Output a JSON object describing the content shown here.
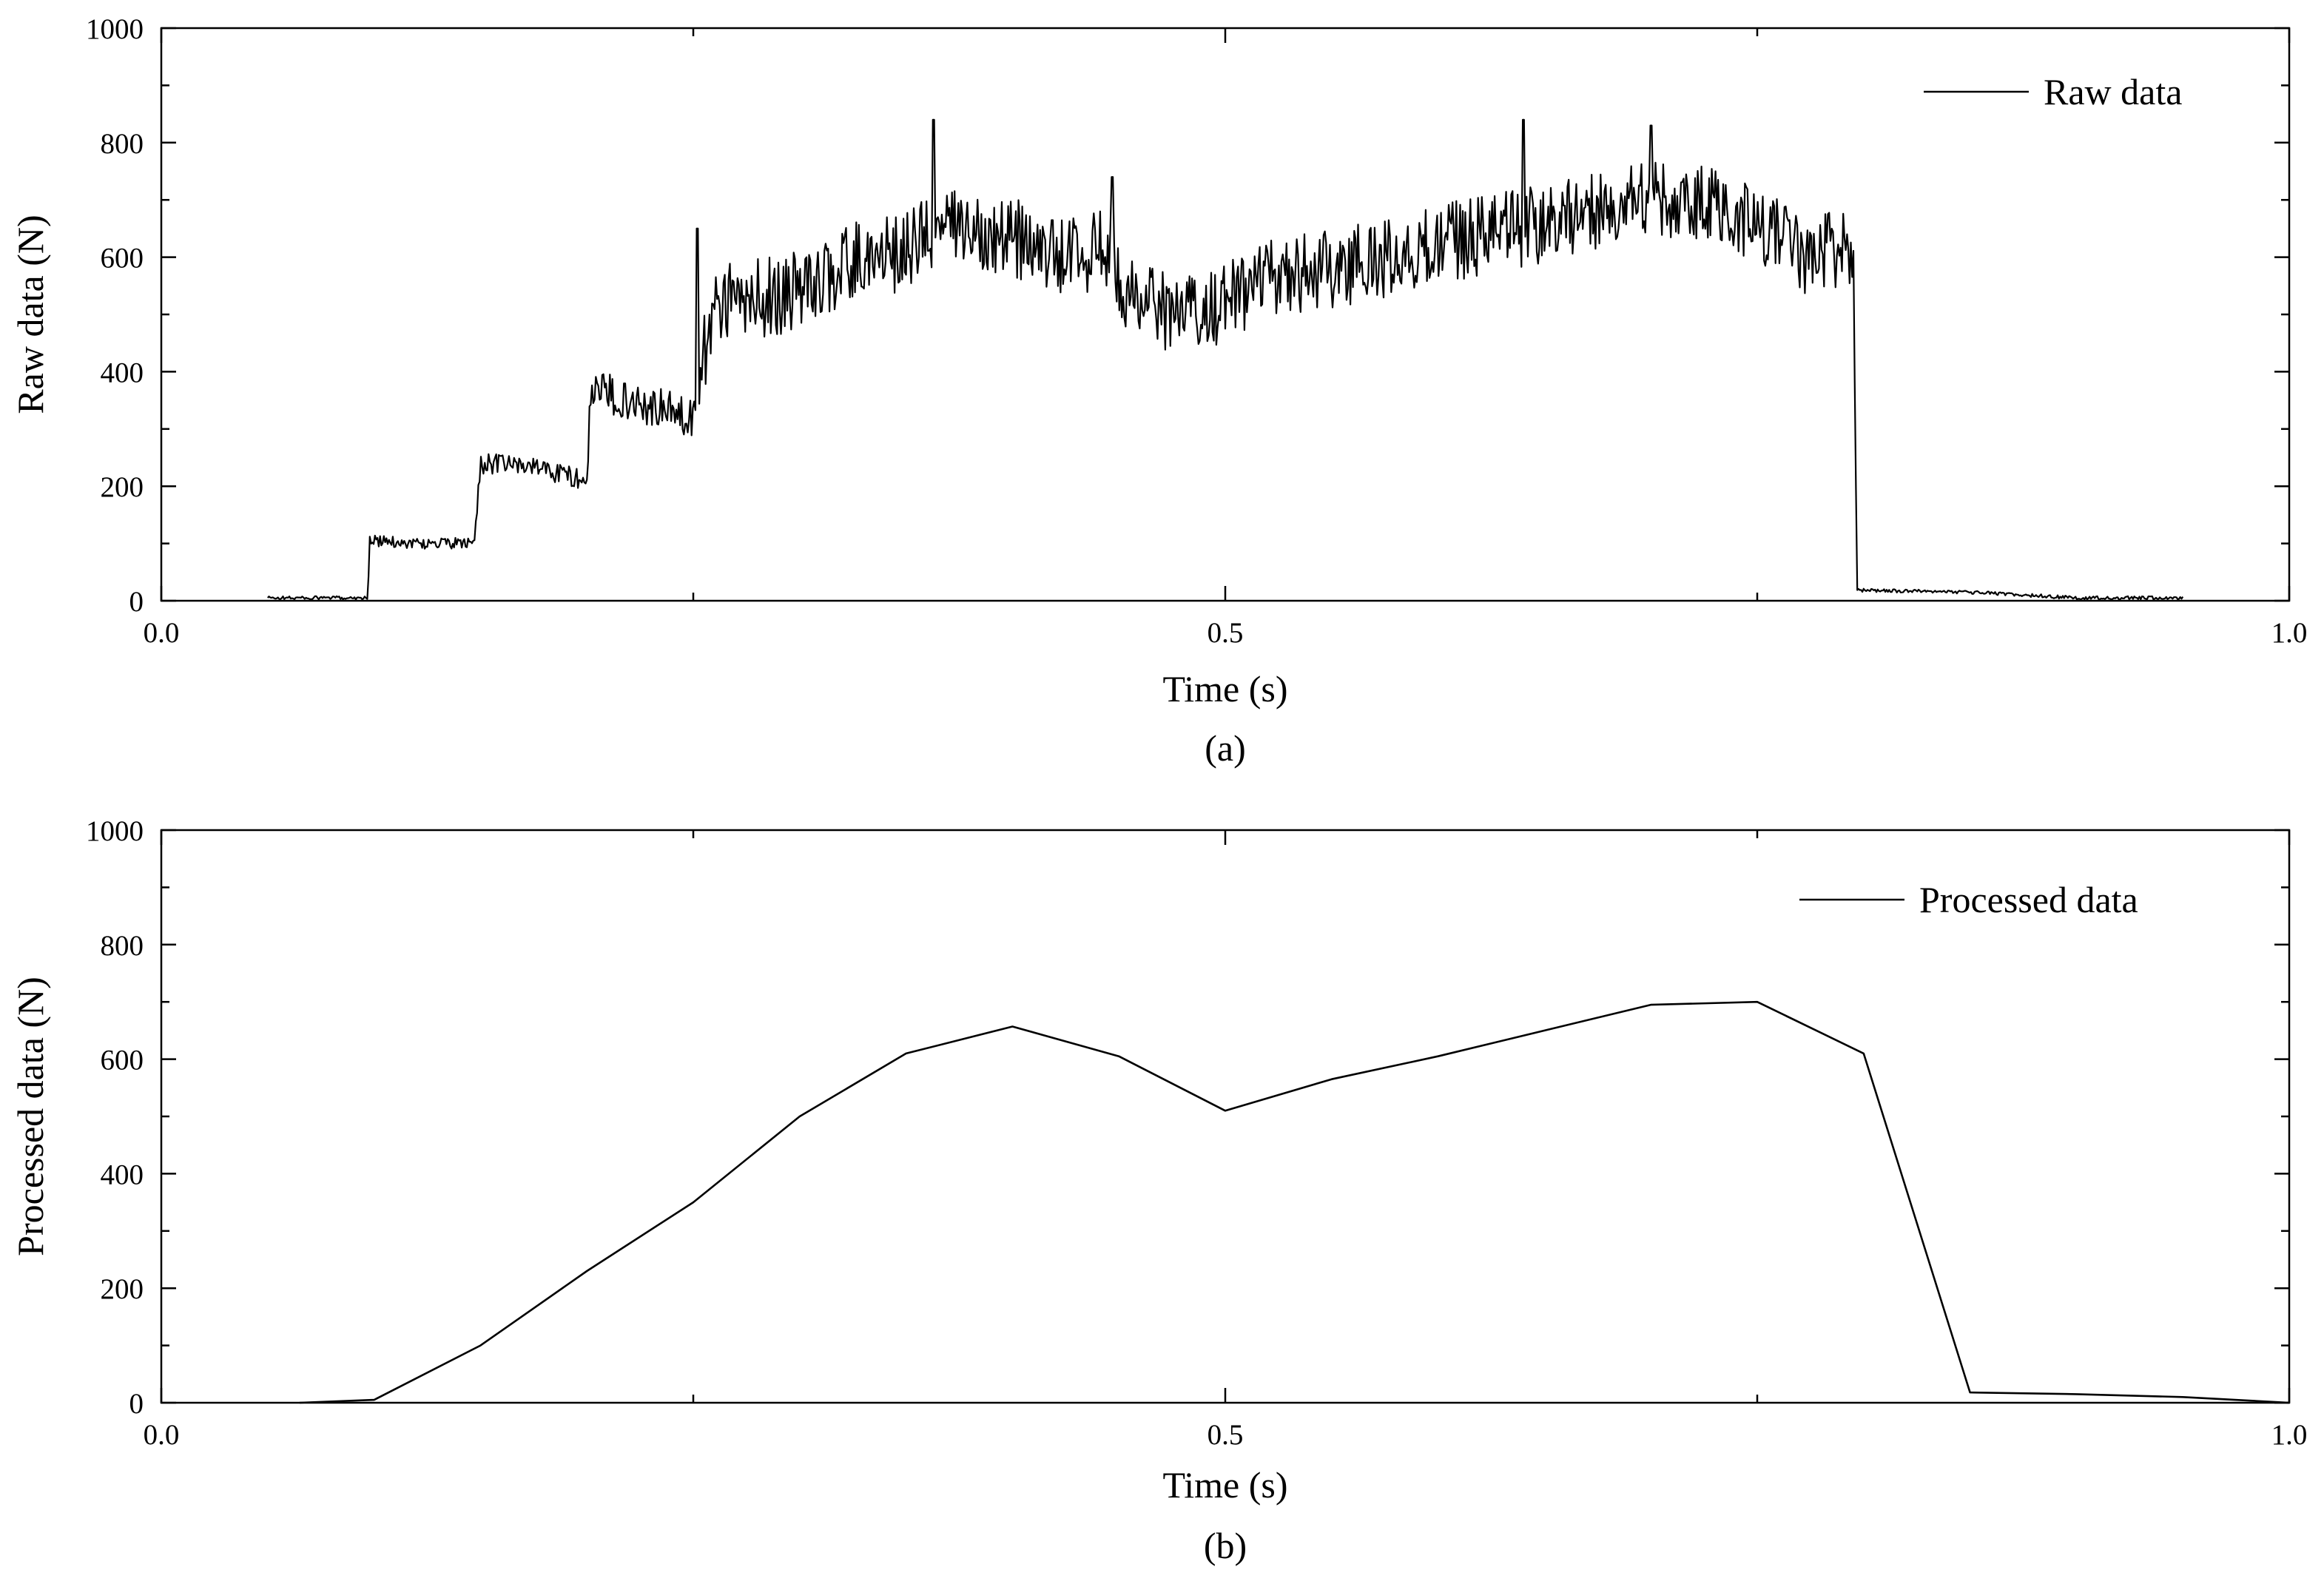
{
  "chart_data": [
    {
      "id": "a",
      "type": "line",
      "caption": "(a)",
      "xlabel": "Time (s)",
      "ylabel": "Raw data (N)",
      "xlim": [
        0,
        1
      ],
      "ylim": [
        0,
        1000
      ],
      "xticks": [
        0.0,
        0.5,
        1.0
      ],
      "xtick_labels": [
        "0.0",
        "0.5",
        "1.0"
      ],
      "yticks": [
        0,
        200,
        400,
        600,
        800,
        1000
      ],
      "ytick_labels": [
        "0",
        "200",
        "400",
        "600",
        "800",
        "1000"
      ],
      "legend": {
        "position": "top-right",
        "entries": [
          "Raw data"
        ]
      },
      "grid": false,
      "color": "#000000",
      "series": [
        {
          "name": "Raw data",
          "noisy": true,
          "x": [
            0.05,
            0.097,
            0.098,
            0.12,
            0.147,
            0.15,
            0.175,
            0.2,
            0.202,
            0.225,
            0.25,
            0.26,
            0.27,
            0.3,
            0.33,
            0.35,
            0.36,
            0.38,
            0.4,
            0.42,
            0.44,
            0.447,
            0.45,
            0.46,
            0.48,
            0.5,
            0.52,
            0.55,
            0.58,
            0.61,
            0.64,
            0.67,
            0.7,
            0.73,
            0.75,
            0.77,
            0.79,
            0.795,
            0.797,
            0.8,
            0.85,
            0.9,
            0.95
          ],
          "y": [
            5,
            5,
            105,
            100,
            100,
            240,
            235,
            210,
            370,
            345,
            320,
            530,
            520,
            540,
            600,
            610,
            640,
            655,
            635,
            600,
            610,
            620,
            560,
            520,
            500,
            520,
            560,
            580,
            600,
            630,
            650,
            680,
            700,
            690,
            660,
            600,
            620,
            600,
            20,
            18,
            15,
            5,
            5
          ],
          "peaks": [
            {
              "x": 0.252,
              "y": 650
            },
            {
              "x": 0.363,
              "y": 840
            },
            {
              "x": 0.447,
              "y": 740
            },
            {
              "x": 0.64,
              "y": 840
            },
            {
              "x": 0.7,
              "y": 830
            }
          ]
        }
      ]
    },
    {
      "id": "b",
      "type": "line",
      "caption": "(b)",
      "xlabel": "Time (s)",
      "ylabel": "Processed data (N)",
      "xlim": [
        0,
        1
      ],
      "ylim": [
        0,
        1000
      ],
      "xticks": [
        0.0,
        0.5,
        1.0
      ],
      "xtick_labels": [
        "0.0",
        "0.5",
        "1.0"
      ],
      "yticks": [
        0,
        200,
        400,
        600,
        800,
        1000
      ],
      "ytick_labels": [
        "0",
        "200",
        "400",
        "600",
        "800",
        "1000"
      ],
      "legend": {
        "position": "top-right",
        "entries": [
          "Processed data"
        ]
      },
      "grid": false,
      "color": "#000000",
      "series": [
        {
          "name": "Processed data",
          "noisy": false,
          "x": [
            0.065,
            0.1,
            0.15,
            0.2,
            0.25,
            0.3,
            0.35,
            0.4,
            0.45,
            0.5,
            0.55,
            0.6,
            0.65,
            0.7,
            0.75,
            0.8,
            0.85,
            0.9,
            0.95,
            1.0
          ],
          "y": [
            0,
            5,
            100,
            230,
            350,
            500,
            610,
            657,
            605,
            510,
            565,
            605,
            650,
            695,
            700,
            610,
            18,
            15,
            10,
            0
          ]
        }
      ]
    }
  ]
}
